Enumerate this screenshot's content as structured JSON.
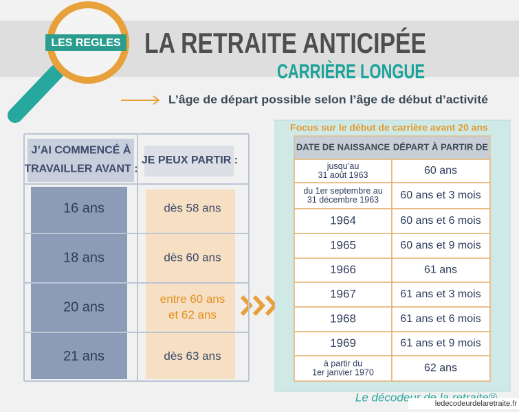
{
  "header": {
    "badge": "LES REGLES",
    "title": "LA RETRAITE ANTICIPÉE",
    "subtitle": "CARRIÈRE LONGUE",
    "tagline": "L’âge de départ possible selon l’âge de début d’activité"
  },
  "left_table": {
    "headers": [
      [
        "J’AI COMMENCÉ À",
        "TRAVAILLER AVANT :"
      ],
      [
        "JE PEUX PARTIR :"
      ]
    ],
    "rows": [
      [
        [
          "16 ans"
        ],
        [
          "dès 58 ans"
        ]
      ],
      [
        [
          "18 ans"
        ],
        [
          "dès 60 ans"
        ]
      ],
      [
        [
          "20 ans"
        ],
        [
          "entre 60 ans",
          "et 62 ans"
        ]
      ],
      [
        [
          "21 ans"
        ],
        [
          "dès 63 ans"
        ]
      ]
    ]
  },
  "right_table": {
    "title": "Focus sur le début de carrière avant 20 ans",
    "headers": [
      "DATE DE NAISSANCE",
      "DÉPART À PARTIR DE"
    ],
    "rows": [
      [
        [
          "jusqu’au",
          "31 août 1963"
        ],
        [
          "60 ans"
        ]
      ],
      [
        [
          "du 1er septembre au",
          "31 décembre 1963"
        ],
        [
          "60 ans et 3 mois"
        ]
      ],
      [
        [
          "1964"
        ],
        [
          "60 ans et 6 mois"
        ]
      ],
      [
        [
          "1965"
        ],
        [
          "60 ans et 9 mois"
        ]
      ],
      [
        [
          "1966"
        ],
        [
          "61 ans"
        ]
      ],
      [
        [
          "1967"
        ],
        [
          "61 ans et 3 mois"
        ]
      ],
      [
        [
          "1968"
        ],
        [
          "61 ans et 6 mois"
        ]
      ],
      [
        [
          "1969"
        ],
        [
          "61 ans et 9 mois"
        ]
      ],
      [
        [
          "à partir du",
          "1er janvier 1970"
        ],
        [
          "62 ans"
        ]
      ]
    ]
  },
  "footer": {
    "brand": "Le décodeur de la retraite®",
    "url": "ledecodeurdelaretraite.fr"
  }
}
